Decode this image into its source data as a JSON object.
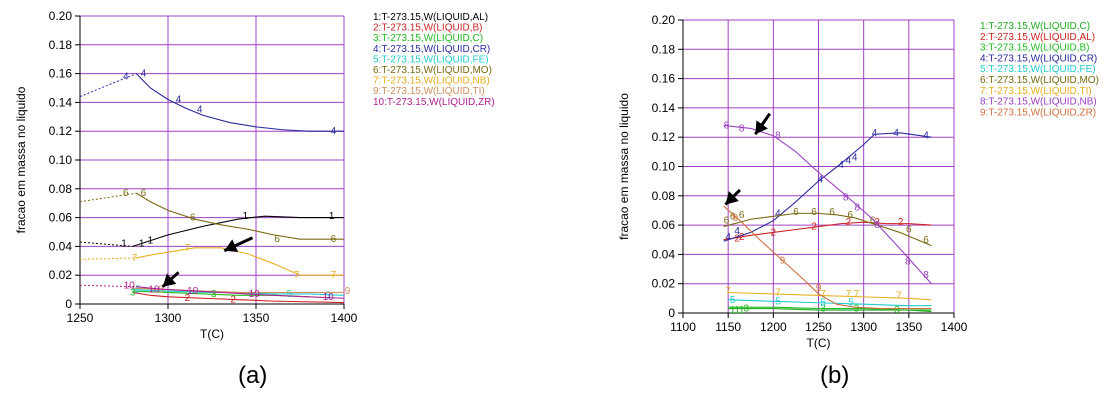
{
  "chart_data": [
    {
      "type": "line",
      "panel_label": "(a)",
      "xlabel": "T(C)",
      "ylabel": "fracao em massa no liquido",
      "xlim": [
        1250,
        1400
      ],
      "ylim": [
        0,
        0.2
      ],
      "x_ticks": [
        1250,
        1300,
        1350,
        1400
      ],
      "y_ticks": [
        0,
        0.02,
        0.04,
        0.06,
        0.08,
        0.1,
        0.12,
        0.14,
        0.16,
        0.18,
        0.2
      ],
      "y_tick_labels": [
        "0",
        "0.02",
        "0.04",
        "0.06",
        "0.08",
        "0.10",
        "0.12",
        "0.14",
        "0.16",
        "0.18",
        "0.20"
      ],
      "grid": true,
      "legend_position": "right",
      "series": [
        {
          "label": "1",
          "name": "1:T-273.15,W(LIQUID,AL)",
          "color": "#000000",
          "dashed_x": [
            1250,
            1280
          ],
          "dashed_y": [
            0.043,
            0.04
          ],
          "x": [
            1280,
            1290,
            1300,
            1320,
            1340,
            1355,
            1375,
            1400
          ],
          "y": [
            0.04,
            0.044,
            0.048,
            0.054,
            0.059,
            0.061,
            0.06,
            0.06
          ],
          "markers_x": [
            1275,
            1285,
            1290,
            1344,
            1393
          ],
          "markers_y": [
            0.042,
            0.042,
            0.044,
            0.061,
            0.061
          ]
        },
        {
          "label": "2",
          "name": "2:T-273.15,W(LIQUID,B)",
          "color": "#cc2222",
          "x": [
            1280,
            1290,
            1300,
            1320,
            1340,
            1360,
            1400
          ],
          "y": [
            0.008,
            0.006,
            0.005,
            0.004,
            0.003,
            0.002,
            0.001
          ],
          "markers_x": [
            1311,
            1337
          ],
          "markers_y": [
            0.004,
            0.003
          ]
        },
        {
          "label": "3",
          "name": "3:T-273.15,W(LIQUID,C)",
          "color": "#22bb22",
          "x": [
            1280,
            1300,
            1320,
            1340,
            1360,
            1380
          ],
          "y": [
            0.009,
            0.008,
            0.007,
            0.006,
            0.006,
            0.005
          ],
          "markers_x": [
            1280,
            1326
          ],
          "markers_y": [
            0.008,
            0.007
          ]
        },
        {
          "label": "4",
          "name": "4:T-273.15,W(LIQUID,CR)",
          "color": "#2a2a9e",
          "dashed_x": [
            1250,
            1282
          ],
          "dashed_y": [
            0.144,
            0.16
          ],
          "x": [
            1282,
            1290,
            1300,
            1310,
            1320,
            1335,
            1350,
            1365,
            1380,
            1400
          ],
          "y": [
            0.16,
            0.15,
            0.142,
            0.136,
            0.131,
            0.126,
            0.123,
            0.121,
            0.12,
            0.12
          ],
          "markers_x": [
            1276,
            1286,
            1306,
            1318,
            1394
          ],
          "markers_y": [
            0.158,
            0.16,
            0.142,
            0.135,
            0.12
          ]
        },
        {
          "label": "5",
          "name": "5:T-273.15,W(LIQUID,FE)",
          "color": "#22cccc",
          "x": [
            1280,
            1300,
            1320,
            1340,
            1360,
            1380,
            1400
          ],
          "y": [
            0.01,
            0.009,
            0.008,
            0.008,
            0.007,
            0.007,
            0.006
          ],
          "markers_x": [
            1283,
            1369,
            1391
          ],
          "markers_y": [
            0.01,
            0.007,
            0.006
          ]
        },
        {
          "label": "6",
          "name": "6:T-273.15,W(LIQUID,MO)",
          "color": "#7a6a12",
          "dashed_x": [
            1250,
            1282
          ],
          "dashed_y": [
            0.071,
            0.077
          ],
          "x": [
            1282,
            1290,
            1300,
            1315,
            1330,
            1345,
            1360,
            1375,
            1400
          ],
          "y": [
            0.077,
            0.071,
            0.065,
            0.059,
            0.055,
            0.052,
            0.048,
            0.045,
            0.045
          ],
          "markers_x": [
            1276,
            1286,
            1314,
            1362,
            1394
          ],
          "markers_y": [
            0.077,
            0.077,
            0.06,
            0.045,
            0.045
          ]
        },
        {
          "label": "7",
          "name": "7:T-273.15,W(LIQUID,NB)",
          "color": "#e8b020",
          "dashed_x": [
            1250,
            1282
          ],
          "dashed_y": [
            0.031,
            0.032
          ],
          "x": [
            1282,
            1290,
            1300,
            1315,
            1330,
            1345,
            1360,
            1375,
            1400
          ],
          "y": [
            0.032,
            0.034,
            0.036,
            0.039,
            0.039,
            0.035,
            0.028,
            0.02,
            0.02
          ],
          "markers_x": [
            1281,
            1311,
            1373,
            1394
          ],
          "markers_y": [
            0.032,
            0.039,
            0.02,
            0.02
          ]
        },
        {
          "label": "9",
          "name": "9:T-273.15,W(LIQUID,TI)",
          "color": "#d09060",
          "x": [
            1280,
            1300,
            1320,
            1340,
            1360,
            1380,
            1400
          ],
          "y": [
            0.011,
            0.01,
            0.009,
            0.008,
            0.008,
            0.008,
            0.008
          ],
          "markers_x": [
            1296,
            1402
          ],
          "markers_y": [
            0.01,
            0.009
          ]
        },
        {
          "label": "10",
          "name": "10:T-273.15,W(LIQUID,ZR)",
          "color": "#b02090",
          "dashed_x": [
            1250,
            1282
          ],
          "dashed_y": [
            0.013,
            0.012
          ],
          "x": [
            1282,
            1290,
            1300,
            1315,
            1330,
            1345,
            1360,
            1380,
            1400
          ],
          "y": [
            0.012,
            0.011,
            0.01,
            0.009,
            0.008,
            0.007,
            0.006,
            0.005,
            0.004
          ],
          "markers_x": [
            1278,
            1292,
            1314,
            1349,
            1391
          ],
          "markers_y": [
            0.013,
            0.01,
            0.009,
            0.007,
            0.005
          ]
        }
      ],
      "arrows": [
        {
          "tail_x": 1348,
          "tail_y": 0.046,
          "head_x": 1332,
          "head_y": 0.037
        },
        {
          "tail_x": 1306,
          "tail_y": 0.022,
          "head_x": 1297,
          "head_y": 0.012
        }
      ]
    },
    {
      "type": "line",
      "panel_label": "(b)",
      "xlabel": "T(C)",
      "ylabel": "fracao em massa no liquido",
      "xlim": [
        1100,
        1400
      ],
      "ylim": [
        0,
        0.2
      ],
      "x_ticks": [
        1100,
        1150,
        1200,
        1250,
        1300,
        1350,
        1400
      ],
      "y_ticks": [
        0,
        0.02,
        0.04,
        0.06,
        0.08,
        0.1,
        0.12,
        0.14,
        0.16,
        0.18,
        0.2
      ],
      "y_tick_labels": [
        "0",
        "0.02",
        "0.04",
        "0.06",
        "0.08",
        "0.10",
        "0.12",
        "0.14",
        "0.16",
        "0.18",
        "0.20"
      ],
      "grid": true,
      "legend_position": "right",
      "series": [
        {
          "label": "1",
          "name": "1:T-273.15,W(LIQUID,C)",
          "color": "#22aa22",
          "x": [
            1150,
            1200,
            1250,
            1300,
            1350,
            1375
          ],
          "y": [
            0.003,
            0.003,
            0.002,
            0.002,
            0.002,
            0.001
          ],
          "markers_x": [
            1155,
            1160,
            1165
          ],
          "markers_y": [
            0.002,
            0.002,
            0.002
          ]
        },
        {
          "label": "2",
          "name": "2:T-273.15,W(LIQUID,AL)",
          "color": "#cc2222",
          "x": [
            1145,
            1175,
            1200,
            1225,
            1250,
            1275,
            1300,
            1325,
            1350,
            1375
          ],
          "y": [
            0.05,
            0.053,
            0.055,
            0.057,
            0.059,
            0.061,
            0.062,
            0.061,
            0.061,
            0.06
          ],
          "markers_x": [
            1160,
            1165,
            1200,
            1245,
            1283,
            1315,
            1341
          ],
          "markers_y": [
            0.051,
            0.052,
            0.055,
            0.059,
            0.062,
            0.062,
            0.062
          ]
        },
        {
          "label": "3",
          "name": "3:T-273.15,W(LIQUID,B)",
          "color": "#22bb22",
          "x": [
            1150,
            1200,
            1250,
            1300,
            1350,
            1375
          ],
          "y": [
            0.004,
            0.004,
            0.003,
            0.003,
            0.002,
            0.002
          ],
          "markers_x": [
            1170,
            1255,
            1292,
            1337
          ],
          "markers_y": [
            0.003,
            0.003,
            0.003,
            0.002
          ]
        },
        {
          "label": "4",
          "name": "4:T-273.15,W(LIQUID,CR)",
          "color": "#2a2a9e",
          "x": [
            1145,
            1175,
            1200,
            1225,
            1250,
            1275,
            1300,
            1312,
            1340,
            1375
          ],
          "y": [
            0.049,
            0.055,
            0.063,
            0.076,
            0.09,
            0.102,
            0.115,
            0.122,
            0.123,
            0.12
          ],
          "markers_x": [
            1150,
            1160,
            1205,
            1252,
            1275,
            1283,
            1290,
            1312,
            1336,
            1369
          ],
          "markers_y": [
            0.052,
            0.056,
            0.068,
            0.091,
            0.101,
            0.104,
            0.106,
            0.123,
            0.123,
            0.121
          ]
        },
        {
          "label": "5",
          "name": "5:T-273.15,W(LIQUID,FE)",
          "color": "#22cccc",
          "x": [
            1150,
            1200,
            1250,
            1300,
            1350,
            1375
          ],
          "y": [
            0.009,
            0.008,
            0.007,
            0.006,
            0.005,
            0.005
          ],
          "markers_x": [
            1155,
            1205,
            1255,
            1286
          ],
          "markers_y": [
            0.009,
            0.008,
            0.007,
            0.007
          ]
        },
        {
          "label": "6",
          "name": "6:T-273.15,W(LIQUID,MO)",
          "color": "#7a6a12",
          "x": [
            1145,
            1175,
            1200,
            1225,
            1250,
            1270,
            1290,
            1310,
            1340,
            1375
          ],
          "y": [
            0.059,
            0.064,
            0.066,
            0.068,
            0.068,
            0.067,
            0.065,
            0.061,
            0.055,
            0.046
          ],
          "markers_x": [
            1148,
            1155,
            1165,
            1225,
            1245,
            1265,
            1285,
            1310,
            1350,
            1369
          ],
          "markers_y": [
            0.063,
            0.066,
            0.067,
            0.069,
            0.069,
            0.069,
            0.067,
            0.063,
            0.057,
            0.05
          ]
        },
        {
          "label": "7",
          "name": "7:T-273.15,W(LIQUID,TI)",
          "color": "#e8b020",
          "x": [
            1150,
            1200,
            1250,
            1300,
            1350,
            1375
          ],
          "y": [
            0.014,
            0.013,
            0.012,
            0.011,
            0.01,
            0.009
          ],
          "markers_x": [
            1150,
            1205,
            1255,
            1283,
            1292,
            1339
          ],
          "markers_y": [
            0.015,
            0.014,
            0.013,
            0.013,
            0.013,
            0.012
          ]
        },
        {
          "label": "8",
          "name": "8:T-273.15,W(LIQUID,NB)",
          "color": "#9a40c0",
          "x": [
            1145,
            1175,
            1200,
            1225,
            1250,
            1275,
            1290,
            1310,
            1340,
            1375
          ],
          "y": [
            0.128,
            0.126,
            0.121,
            0.11,
            0.096,
            0.083,
            0.075,
            0.064,
            0.044,
            0.02
          ],
          "markers_x": [
            1148,
            1165,
            1205,
            1280,
            1293,
            1315,
            1349,
            1369
          ],
          "markers_y": [
            0.128,
            0.126,
            0.121,
            0.079,
            0.072,
            0.06,
            0.035,
            0.026
          ]
        },
        {
          "label": "9",
          "name": "9:T-273.15,W(LIQUID,ZR)",
          "color": "#d07040",
          "x": [
            1145,
            1165,
            1185,
            1210,
            1235,
            1250,
            1270,
            1290,
            1320,
            1350,
            1375
          ],
          "y": [
            0.073,
            0.062,
            0.05,
            0.036,
            0.022,
            0.013,
            0.006,
            0.004,
            0.003,
            0.003,
            0.003
          ],
          "markers_x": [
            1158,
            1210,
            1250
          ],
          "markers_y": [
            0.065,
            0.036,
            0.017
          ]
        }
      ],
      "arrows": [
        {
          "tail_x": 1196,
          "tail_y": 0.136,
          "head_x": 1180,
          "head_y": 0.122
        },
        {
          "tail_x": 1163,
          "tail_y": 0.084,
          "head_x": 1147,
          "head_y": 0.074
        }
      ]
    }
  ]
}
